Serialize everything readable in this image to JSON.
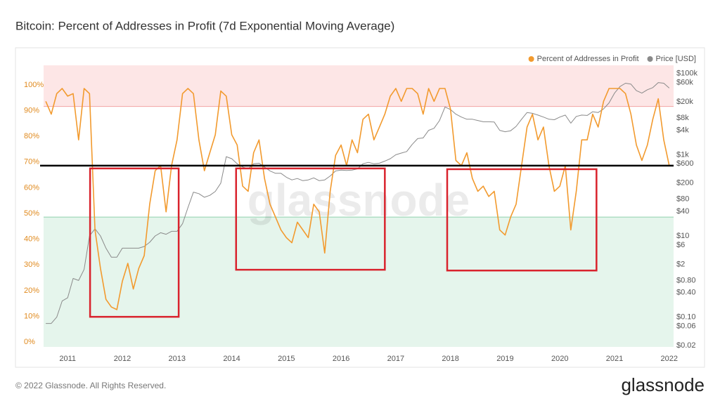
{
  "chart_data": {
    "type": "line",
    "title": "Bitcoin: Percent of Addresses in Profit (7d Exponential Moving Average)",
    "watermark": "glassnode",
    "footer": "© 2022 Glassnode. All Rights Reserved.",
    "logo": "glassnode",
    "legend": "top-right",
    "x": [
      2010.6,
      2010.7,
      2010.8,
      2010.9,
      2011.0,
      2011.1,
      2011.2,
      2011.3,
      2011.4,
      2011.5,
      2011.6,
      2011.7,
      2011.8,
      2011.9,
      2012.0,
      2012.1,
      2012.2,
      2012.3,
      2012.4,
      2012.5,
      2012.6,
      2012.7,
      2012.8,
      2012.9,
      2013.0,
      2013.1,
      2013.2,
      2013.3,
      2013.4,
      2013.5,
      2013.6,
      2013.7,
      2013.8,
      2013.9,
      2014.0,
      2014.1,
      2014.2,
      2014.3,
      2014.4,
      2014.5,
      2014.6,
      2014.7,
      2014.8,
      2014.9,
      2015.0,
      2015.1,
      2015.2,
      2015.3,
      2015.4,
      2015.5,
      2015.6,
      2015.7,
      2015.8,
      2015.9,
      2016.0,
      2016.1,
      2016.2,
      2016.3,
      2016.4,
      2016.5,
      2016.6,
      2016.7,
      2016.8,
      2016.9,
      2017.0,
      2017.1,
      2017.2,
      2017.3,
      2017.4,
      2017.5,
      2017.6,
      2017.7,
      2017.8,
      2017.9,
      2018.0,
      2018.1,
      2018.2,
      2018.3,
      2018.4,
      2018.5,
      2018.6,
      2018.7,
      2018.8,
      2018.9,
      2019.0,
      2019.1,
      2019.2,
      2019.3,
      2019.4,
      2019.5,
      2019.6,
      2019.7,
      2019.8,
      2019.9,
      2020.0,
      2020.1,
      2020.2,
      2020.3,
      2020.4,
      2020.5,
      2020.6,
      2020.7,
      2020.8,
      2020.9,
      2021.0,
      2021.1,
      2021.2,
      2021.3,
      2021.4,
      2021.5,
      2021.6,
      2021.7,
      2021.8,
      2021.9,
      2022.0
    ],
    "series": [
      {
        "name": "Percent of Addresses in Profit",
        "color": "#f29a2e",
        "axis": "y",
        "values": [
          95,
          90,
          98,
          100,
          97,
          98,
          80,
          100,
          98,
          45,
          30,
          18,
          15,
          14,
          25,
          32,
          22,
          30,
          35,
          55,
          68,
          70,
          52,
          70,
          80,
          98,
          100,
          98,
          80,
          68,
          75,
          82,
          99,
          97,
          82,
          78,
          62,
          60,
          75,
          80,
          65,
          55,
          50,
          45,
          42,
          40,
          48,
          45,
          42,
          55,
          52,
          36,
          60,
          74,
          78,
          70,
          80,
          75,
          88,
          90,
          80,
          85,
          90,
          97,
          100,
          95,
          100,
          100,
          98,
          90,
          100,
          95,
          100,
          100,
          92,
          72,
          70,
          75,
          65,
          60,
          62,
          58,
          60,
          45,
          43,
          50,
          55,
          70,
          85,
          90,
          80,
          85,
          70,
          60,
          62,
          70,
          45,
          60,
          80,
          80,
          90,
          85,
          95,
          100,
          100,
          100,
          98,
          90,
          78,
          72,
          78,
          88,
          96,
          80,
          70
        ]
      },
      {
        "name": "Price [USD]",
        "color": "#8a8a8a",
        "axis": "y2",
        "values": [
          0.07,
          0.07,
          0.1,
          0.25,
          0.3,
          0.9,
          0.8,
          1.5,
          10,
          15,
          10,
          5,
          3,
          3,
          5,
          5,
          5,
          5,
          5.5,
          7,
          10,
          12,
          11,
          13,
          13,
          20,
          50,
          120,
          110,
          90,
          100,
          125,
          200,
          900,
          800,
          600,
          500,
          450,
          600,
          620,
          500,
          400,
          350,
          350,
          280,
          240,
          260,
          230,
          240,
          270,
          230,
          240,
          300,
          400,
          420,
          410,
          420,
          450,
          600,
          650,
          600,
          620,
          700,
          800,
          1000,
          1100,
          1200,
          1800,
          2500,
          2600,
          4000,
          4500,
          7000,
          15000,
          13000,
          10000,
          8500,
          7500,
          7500,
          7000,
          6500,
          6500,
          6400,
          4000,
          3700,
          3900,
          5000,
          7500,
          11000,
          10500,
          9500,
          8500,
          7500,
          7300,
          8500,
          9500,
          6000,
          8800,
          9500,
          9300,
          11500,
          11000,
          13500,
          19000,
          33000,
          48000,
          58000,
          55000,
          38000,
          33000,
          40000,
          45000,
          60000,
          58000,
          44000
        ]
      }
    ],
    "xlim": [
      2010.56,
      2022.08
    ],
    "xticks": [
      2011,
      2012,
      2013,
      2014,
      2015,
      2016,
      2017,
      2018,
      2019,
      2020,
      2021,
      2022
    ],
    "ylim": [
      -0.5,
      109
    ],
    "yticks": [
      {
        "value": 0,
        "label": "0%"
      },
      {
        "value": 10,
        "label": "10%"
      },
      {
        "value": 20,
        "label": "20%"
      },
      {
        "value": 30,
        "label": "30%"
      },
      {
        "value": 40,
        "label": "40%"
      },
      {
        "value": 50,
        "label": "50%"
      },
      {
        "value": 60,
        "label": "60%"
      },
      {
        "value": 70,
        "label": "70%"
      },
      {
        "value": 80,
        "label": "80%"
      },
      {
        "value": 90,
        "label": "90%"
      },
      {
        "value": 100,
        "label": "100%"
      }
    ],
    "y2lim": [
      0.0185,
      160000
    ],
    "y2_log": true,
    "y2ticks": [
      {
        "value": 100000,
        "label": "$100k"
      },
      {
        "value": 60000,
        "label": "$60k"
      },
      {
        "value": 20000,
        "label": "$20k"
      },
      {
        "value": 8000,
        "label": "$8k"
      },
      {
        "value": 4000,
        "label": "$4k"
      },
      {
        "value": 1000,
        "label": "$1k"
      },
      {
        "value": 600,
        "label": "$600"
      },
      {
        "value": 200,
        "label": "$200"
      },
      {
        "value": 80,
        "label": "$80"
      },
      {
        "value": 40,
        "label": "$40"
      },
      {
        "value": 10,
        "label": "$10"
      },
      {
        "value": 6,
        "label": "$6"
      },
      {
        "value": 2,
        "label": "$2"
      },
      {
        "value": 0.8,
        "label": "$0.80"
      },
      {
        "value": 0.4,
        "label": "$0.40"
      },
      {
        "value": 0.1,
        "label": "$0.10"
      },
      {
        "value": 0.06,
        "label": "$0.06"
      },
      {
        "value": 0.02,
        "label": "$0.02"
      }
    ],
    "bands": [
      {
        "from": 93,
        "to": 109,
        "color": "#fde6e6",
        "edge": "#f2a3a3"
      },
      {
        "from": -0.5,
        "to": 50,
        "color": "#e5f5ec",
        "edge": "#8fd1ad"
      }
    ],
    "reference_line": {
      "value": 70,
      "color": "#000000"
    },
    "highlight_boxes": [
      {
        "x": [
          2011.41,
          2013.03
        ],
        "y": [
          11.2,
          68.9
        ],
        "color": "#d9232d"
      },
      {
        "x": [
          2014.08,
          2016.8
        ],
        "y": [
          29.5,
          68.9
        ],
        "color": "#d9232d"
      },
      {
        "x": [
          2017.94,
          2020.67
        ],
        "y": [
          29.2,
          68.6
        ],
        "color": "#d9232d"
      }
    ]
  }
}
